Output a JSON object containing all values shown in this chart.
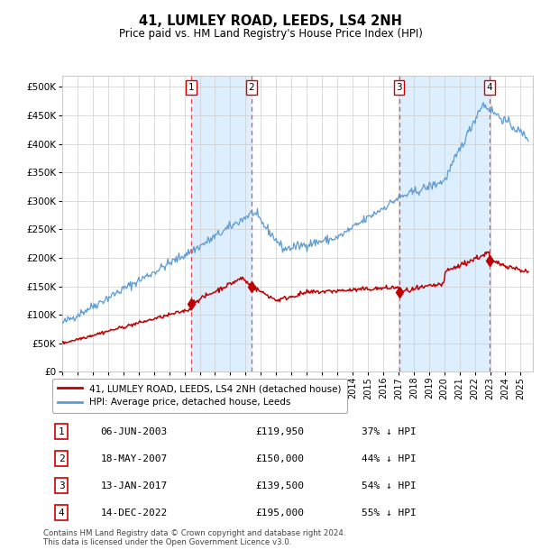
{
  "title": "41, LUMLEY ROAD, LEEDS, LS4 2NH",
  "subtitle": "Price paid vs. HM Land Registry's House Price Index (HPI)",
  "footer1": "Contains HM Land Registry data © Crown copyright and database right 2024.",
  "footer2": "This data is licensed under the Open Government Licence v3.0.",
  "legend_label_red": "41, LUMLEY ROAD, LEEDS, LS4 2NH (detached house)",
  "legend_label_blue": "HPI: Average price, detached house, Leeds",
  "transactions": [
    {
      "num": 1,
      "date": "06-JUN-2003",
      "year": 2003.44,
      "price": 119950,
      "pct": "37% ↓ HPI"
    },
    {
      "num": 2,
      "date": "18-MAY-2007",
      "year": 2007.38,
      "price": 150000,
      "pct": "44% ↓ HPI"
    },
    {
      "num": 3,
      "date": "13-JAN-2017",
      "year": 2017.04,
      "price": 139500,
      "pct": "54% ↓ HPI"
    },
    {
      "num": 4,
      "date": "14-DEC-2022",
      "year": 2022.96,
      "price": 195000,
      "pct": "55% ↓ HPI"
    }
  ],
  "hpi_color": "#5b9bd5",
  "price_color": "#c00000",
  "shade_color": "#ddeeff",
  "vline_color": "#e05050",
  "grid_color": "#cccccc",
  "bg_color": "#ffffff",
  "ylim": [
    0,
    520000
  ],
  "xlim_start": 1995.0,
  "xlim_end": 2025.8,
  "ytick_values": [
    0,
    50000,
    100000,
    150000,
    200000,
    250000,
    300000,
    350000,
    400000,
    450000,
    500000
  ],
  "ytick_labels": [
    "£0",
    "£50K",
    "£100K",
    "£150K",
    "£200K",
    "£250K",
    "£300K",
    "£350K",
    "£400K",
    "£450K",
    "£500K"
  ]
}
